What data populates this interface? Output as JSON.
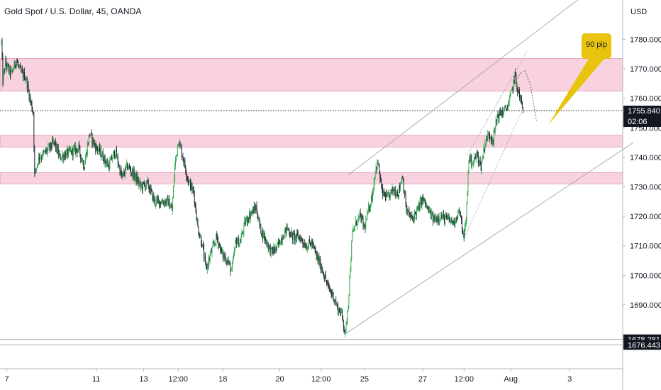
{
  "header": {
    "title": "Gold Spot / U.S. Dollar, 45, OANDA"
  },
  "chart_data": {
    "type": "candlestick",
    "symbol_title": "Gold Spot / U.S. Dollar, 45, OANDA",
    "y_unit": "USD",
    "ylim": [
      1676.443,
      1789.5
    ],
    "y_ticks": [
      1690,
      1700,
      1710,
      1720,
      1730,
      1740,
      1750,
      1760,
      1770,
      1780
    ],
    "y_tick_labels": [
      "1690.000",
      "1700.000",
      "1710.000",
      "1720.000",
      "1730.000",
      "1740.000",
      "1750.000",
      "1760.000",
      "1770.000",
      "1780.000"
    ],
    "x_ticks": [
      {
        "label": "7",
        "bar": 8
      },
      {
        "label": "11",
        "bar": 140
      },
      {
        "label": "13",
        "bar": 210
      },
      {
        "label": "12:00",
        "bar": 261
      },
      {
        "label": "18",
        "bar": 327
      },
      {
        "label": "20",
        "bar": 411
      },
      {
        "label": "12:00",
        "bar": 472
      },
      {
        "label": "25",
        "bar": 536
      },
      {
        "label": "27",
        "bar": 622
      },
      {
        "label": "12:00",
        "bar": 683
      },
      {
        "label": "Aug",
        "bar": 752
      },
      {
        "label": "3",
        "bar": 839
      }
    ],
    "bar_count": 920,
    "zones": [
      {
        "from": 1762.5,
        "to": 1773.5
      },
      {
        "from": 1743.5,
        "to": 1747.5
      },
      {
        "from": 1731.0,
        "to": 1734.8
      }
    ],
    "price_lines": [
      {
        "value": 1755.84,
        "label": "1755.840",
        "sub": "02:06",
        "style": "dotted"
      },
      {
        "value": 1678.281,
        "label": "1678.281",
        "style": "solid"
      },
      {
        "value": 1676.443,
        "label": "1676.443",
        "style": "solid"
      }
    ],
    "anchors": [
      [
        0,
        1779
      ],
      [
        2,
        1766
      ],
      [
        6,
        1772
      ],
      [
        14,
        1768
      ],
      [
        22,
        1773
      ],
      [
        28,
        1769
      ],
      [
        36,
        1767
      ],
      [
        42,
        1760
      ],
      [
        47,
        1755
      ],
      [
        49,
        1734
      ],
      [
        55,
        1740
      ],
      [
        62,
        1741
      ],
      [
        70,
        1743
      ],
      [
        78,
        1745
      ],
      [
        86,
        1740
      ],
      [
        94,
        1741
      ],
      [
        104,
        1742
      ],
      [
        114,
        1743
      ],
      [
        122,
        1737
      ],
      [
        130,
        1748
      ],
      [
        138,
        1744
      ],
      [
        148,
        1741
      ],
      [
        158,
        1737
      ],
      [
        168,
        1742
      ],
      [
        178,
        1733
      ],
      [
        186,
        1737
      ],
      [
        196,
        1734
      ],
      [
        206,
        1730
      ],
      [
        216,
        1731
      ],
      [
        226,
        1725
      ],
      [
        236,
        1725
      ],
      [
        246,
        1725
      ],
      [
        252,
        1722
      ],
      [
        256,
        1737
      ],
      [
        261,
        1746
      ],
      [
        268,
        1740
      ],
      [
        276,
        1732
      ],
      [
        284,
        1728
      ],
      [
        290,
        1716
      ],
      [
        296,
        1711
      ],
      [
        302,
        1702
      ],
      [
        310,
        1708
      ],
      [
        318,
        1713
      ],
      [
        326,
        1707
      ],
      [
        334,
        1705
      ],
      [
        340,
        1701
      ],
      [
        346,
        1712
      ],
      [
        352,
        1711
      ],
      [
        360,
        1718
      ],
      [
        368,
        1721
      ],
      [
        376,
        1723
      ],
      [
        382,
        1716
      ],
      [
        390,
        1712
      ],
      [
        398,
        1708
      ],
      [
        406,
        1709
      ],
      [
        414,
        1713
      ],
      [
        422,
        1716
      ],
      [
        430,
        1713
      ],
      [
        440,
        1713
      ],
      [
        450,
        1710
      ],
      [
        458,
        1711
      ],
      [
        466,
        1706
      ],
      [
        474,
        1702
      ],
      [
        482,
        1696
      ],
      [
        490,
        1693
      ],
      [
        496,
        1689
      ],
      [
        502,
        1687
      ],
      [
        508,
        1680
      ],
      [
        512,
        1691
      ],
      [
        518,
        1714
      ],
      [
        524,
        1718
      ],
      [
        530,
        1720
      ],
      [
        536,
        1716
      ],
      [
        542,
        1722
      ],
      [
        548,
        1728
      ],
      [
        552,
        1736
      ],
      [
        556,
        1738
      ],
      [
        562,
        1728
      ],
      [
        570,
        1726
      ],
      [
        578,
        1729
      ],
      [
        586,
        1728
      ],
      [
        592,
        1734
      ],
      [
        598,
        1722
      ],
      [
        606,
        1719
      ],
      [
        614,
        1722
      ],
      [
        622,
        1726
      ],
      [
        630,
        1722
      ],
      [
        638,
        1719
      ],
      [
        648,
        1720
      ],
      [
        658,
        1719
      ],
      [
        668,
        1718
      ],
      [
        676,
        1722
      ],
      [
        682,
        1713
      ],
      [
        686,
        1718
      ],
      [
        690,
        1740
      ],
      [
        696,
        1738
      ],
      [
        702,
        1741
      ],
      [
        708,
        1737
      ],
      [
        714,
        1745
      ],
      [
        720,
        1748
      ],
      [
        726,
        1746
      ],
      [
        732,
        1754
      ],
      [
        738,
        1755
      ],
      [
        744,
        1756
      ],
      [
        750,
        1759
      ],
      [
        755,
        1764
      ],
      [
        758,
        1768
      ],
      [
        762,
        1763
      ],
      [
        766,
        1760
      ],
      [
        770,
        1756
      ]
    ],
    "drawings": {
      "channel_outer": [
        [
          510,
          1680.5
        ],
        [
          933,
          1745.0
        ]
      ],
      "channel_outer_upper": [
        [
          512,
          1734.0
        ],
        [
          866,
          1796.0
        ]
      ],
      "channel_inner_lower": [
        [
          682,
          1712.0
        ],
        [
          771,
          1757.0
        ]
      ],
      "channel_inner_upper": [
        [
          688,
          1740.8
        ],
        [
          776,
          1776.0
        ]
      ],
      "projection_up": [
        [
          758,
          1765
        ],
        [
          766,
          1768.5
        ],
        [
          773,
          1769.5
        ]
      ],
      "projection_down": [
        [
          773,
          1769.5
        ],
        [
          781,
          1764.5
        ],
        [
          790,
          1752.5
        ]
      ]
    },
    "callout": {
      "text": "90 pip",
      "color": "#e8c40e"
    },
    "colors": {
      "up": "#26a69a",
      "down": "#131722",
      "up_fill": "#3cb043",
      "zone": "#f8d3df",
      "zone_edge": "#e797b3",
      "axis_label_bg": "#131722"
    }
  }
}
